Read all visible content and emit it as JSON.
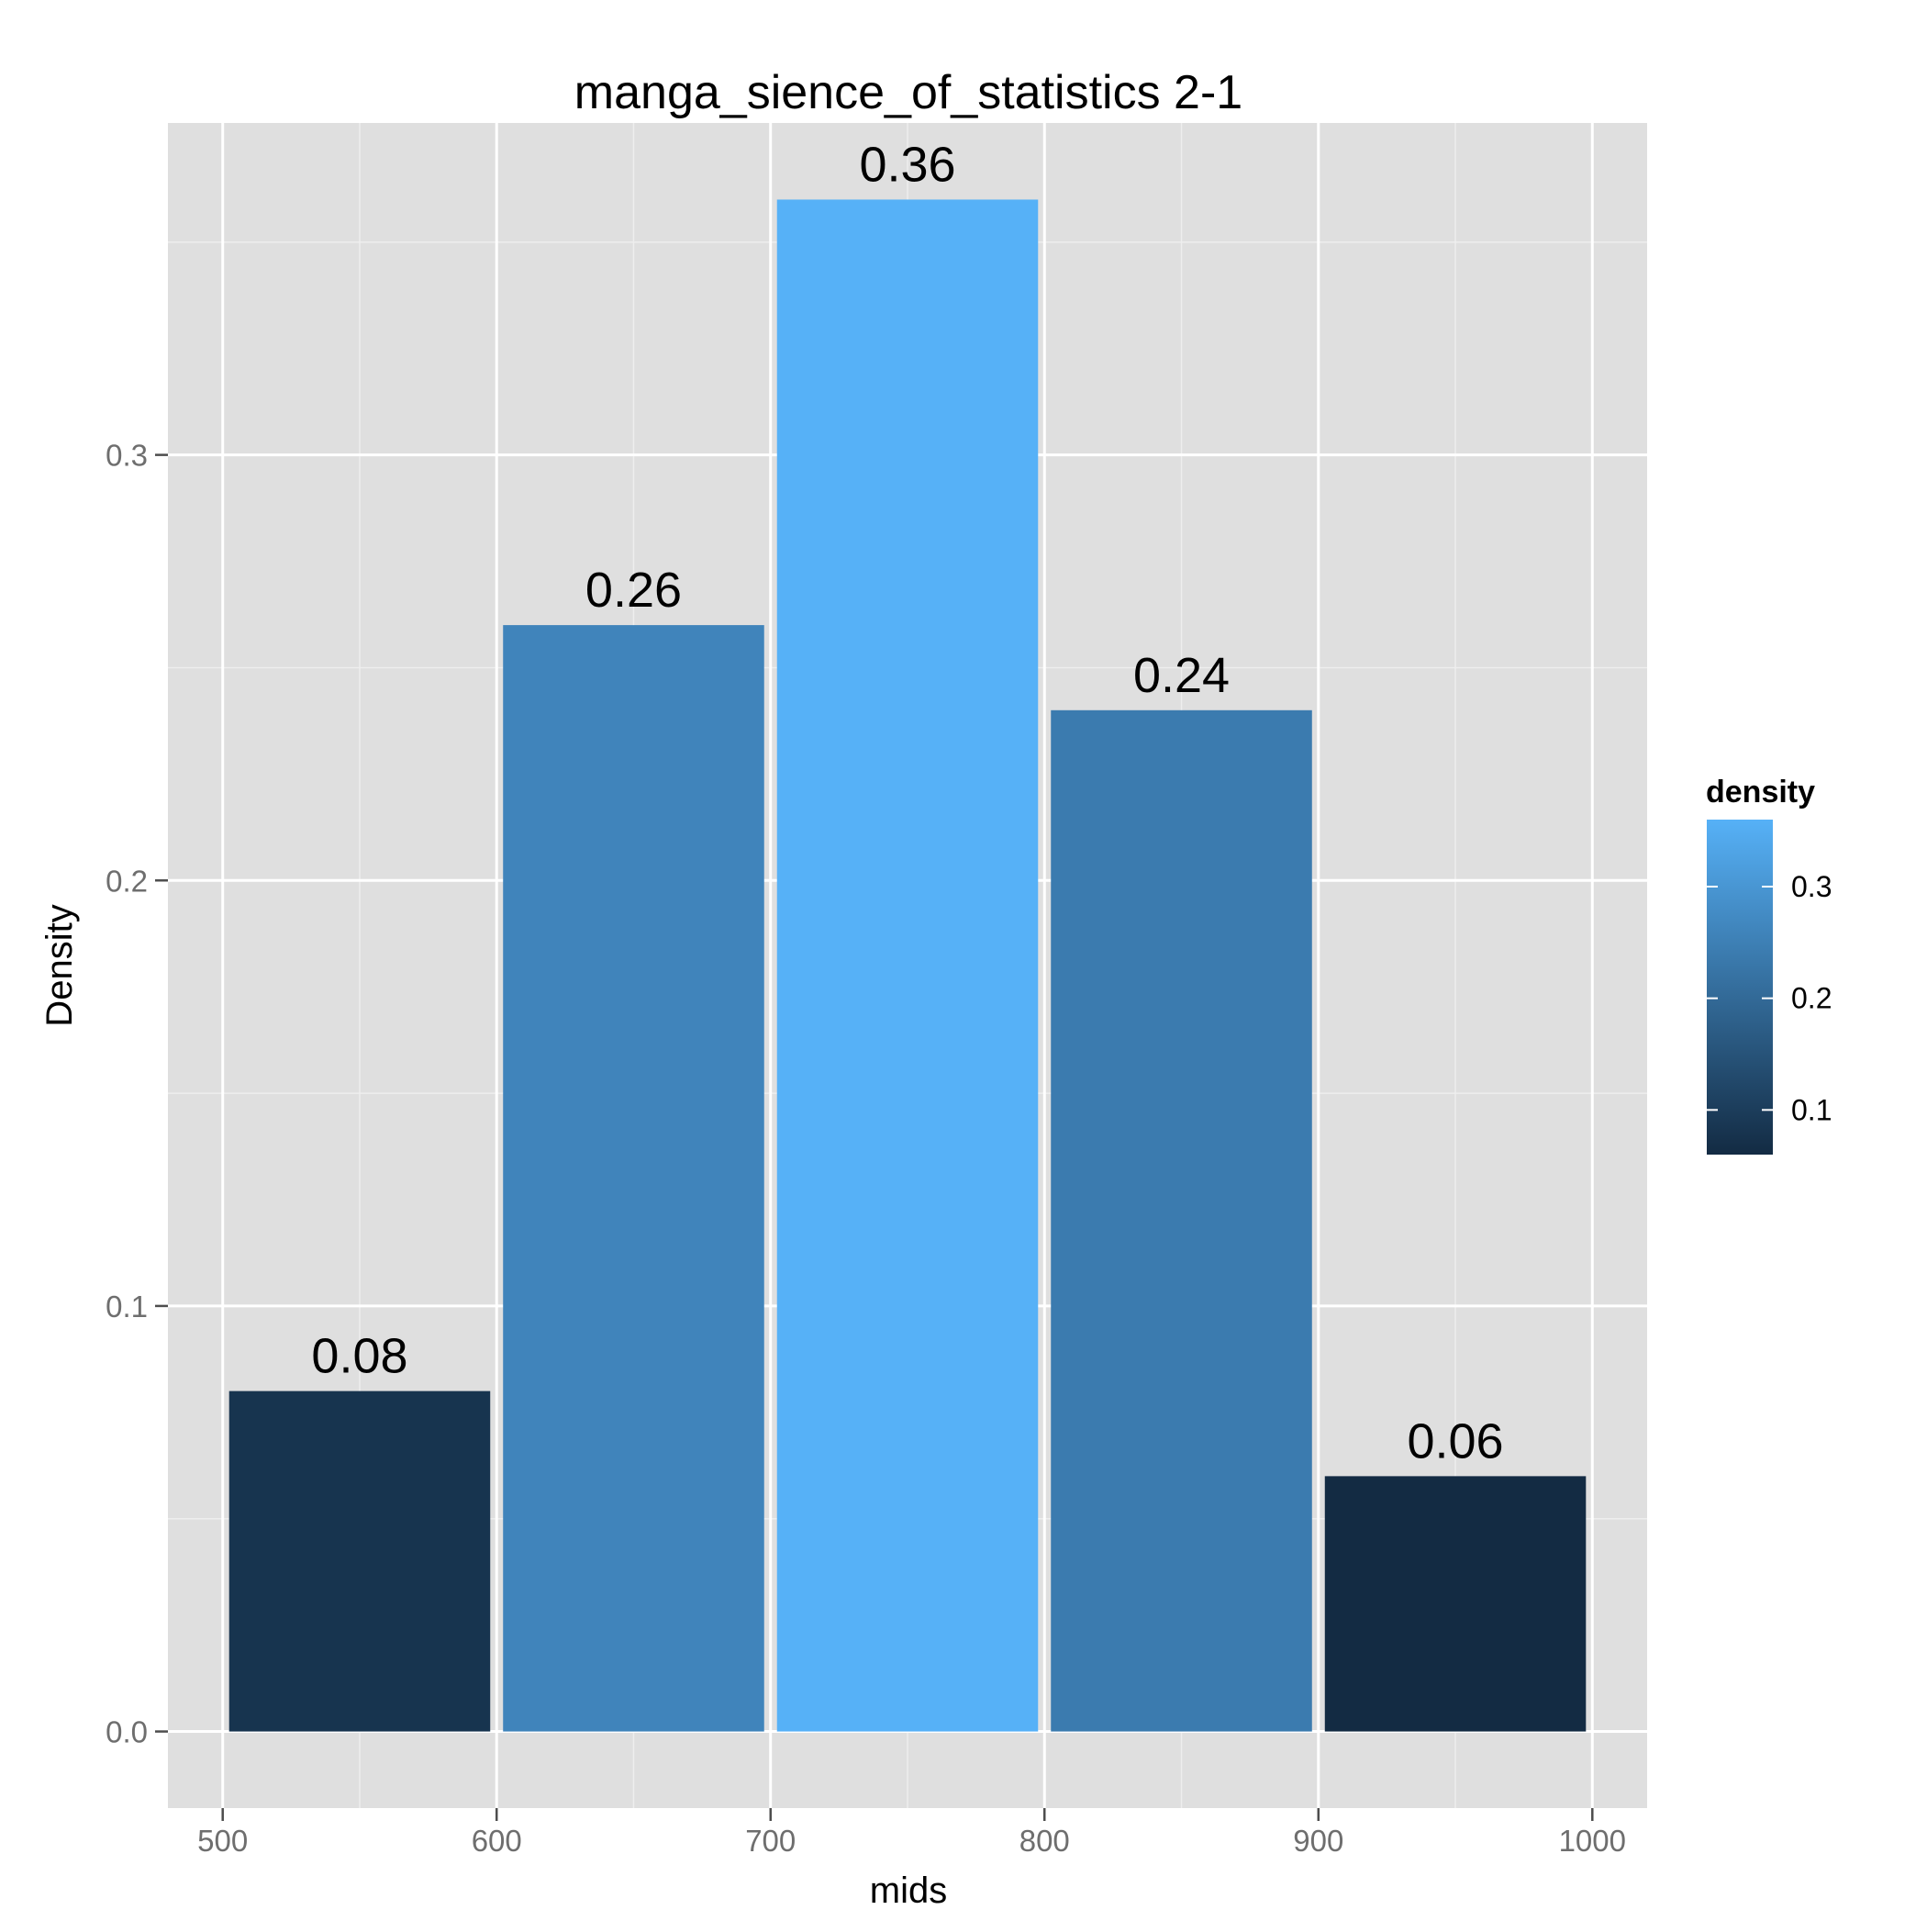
{
  "chart_data": {
    "type": "bar",
    "title": "manga_sience_of_statistics 2-1",
    "xlabel": "mids",
    "ylabel": "Density",
    "bins": [
      {
        "x_start": 500,
        "x_end": 600,
        "value": 0.08,
        "label": "0.08"
      },
      {
        "x_start": 600,
        "x_end": 700,
        "value": 0.26,
        "label": "0.26"
      },
      {
        "x_start": 700,
        "x_end": 800,
        "value": 0.36,
        "label": "0.36"
      },
      {
        "x_start": 800,
        "x_end": 900,
        "value": 0.24,
        "label": "0.24"
      },
      {
        "x_start": 900,
        "x_end": 1000,
        "value": 0.06,
        "label": "0.06"
      }
    ],
    "xlim": [
      480,
      1020
    ],
    "ylim": [
      -0.018,
      0.378
    ],
    "x_ticks": [
      500,
      600,
      700,
      800,
      900,
      1000
    ],
    "x_tick_labels": [
      "500",
      "600",
      "700",
      "800",
      "900",
      "1000"
    ],
    "y_ticks": [
      0.0,
      0.1,
      0.2,
      0.3
    ],
    "y_tick_labels": [
      "0.0",
      "0.1",
      "0.2",
      "0.3"
    ],
    "grid": true,
    "legend": {
      "title": "density",
      "position": "right",
      "type": "colorbar",
      "range": [
        0.06,
        0.36
      ],
      "breaks": [
        0.1,
        0.2,
        0.3
      ],
      "labels": [
        "0.1",
        "0.2",
        "0.3"
      ],
      "low_color": "#132B43",
      "high_color": "#56B1F7"
    },
    "colors": {
      "panel_background": "#DFDFDF",
      "low": "#132B43",
      "high": "#56B1F7"
    }
  }
}
